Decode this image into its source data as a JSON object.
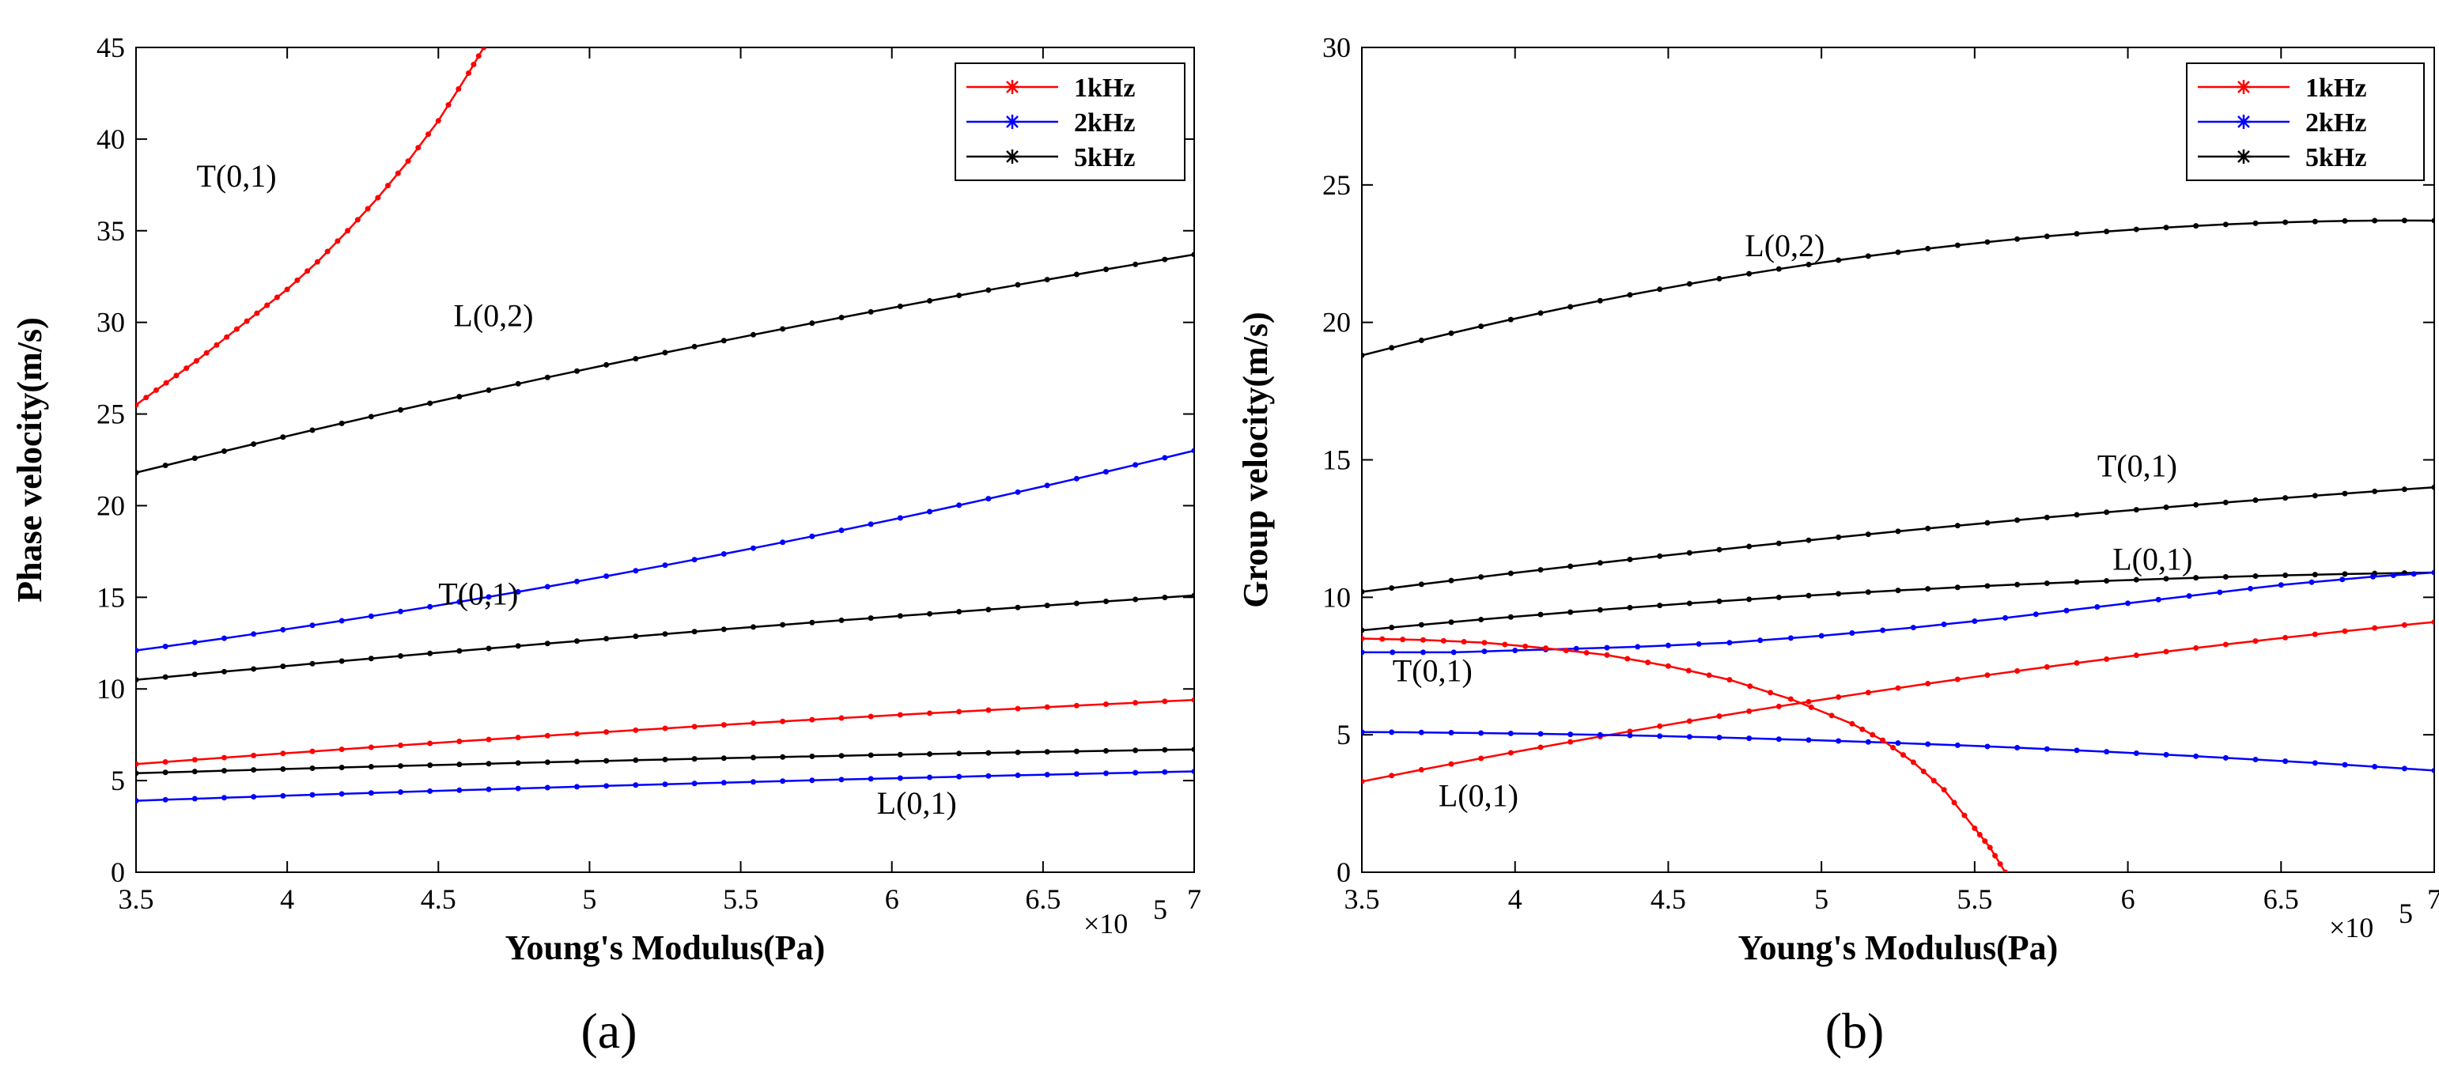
{
  "chart_data": [
    {
      "type": "line",
      "caption": "(a)",
      "xlabel": "Young's Modulus(Pa)",
      "ylabel": "Phase velocity(m/s)",
      "x_multiplier": "×10",
      "x_exponent": "5",
      "xlim": [
        3.5,
        7
      ],
      "ylim": [
        0,
        45
      ],
      "xticks": [
        "3.5",
        "4",
        "4.5",
        "5",
        "5.5",
        "6",
        "6.5",
        "7"
      ],
      "yticks": [
        "0",
        "5",
        "10",
        "15",
        "20",
        "25",
        "30",
        "35",
        "40",
        "45"
      ],
      "legend": [
        {
          "label": "1kHz",
          "color": "#ff0000"
        },
        {
          "label": "2kHz",
          "color": "#0000ff"
        },
        {
          "label": "5kHz",
          "color": "#000000"
        }
      ],
      "series": [
        {
          "name": "1kHz T(0,1)",
          "color": "#ff0000",
          "x": [
            3.5,
            3.6,
            3.7,
            3.8,
            3.9,
            4.0,
            4.1,
            4.2,
            4.3,
            4.4,
            4.5,
            4.6,
            4.65
          ],
          "y": [
            25.5,
            26.7,
            27.9,
            29.2,
            30.5,
            31.8,
            33.3,
            35.0,
            36.8,
            38.8,
            41.0,
            43.6,
            45.0
          ]
        },
        {
          "name": "5kHz L(0,2)",
          "color": "#000000",
          "x": [
            3.5,
            7
          ],
          "y": [
            21.8,
            33.7
          ],
          "curve": 0.6
        },
        {
          "name": "2kHz L(0,2)",
          "color": "#0000ff",
          "x": [
            3.5,
            7
          ],
          "y": [
            12.1,
            23.0
          ],
          "curve": -0.8
        },
        {
          "name": "5kHz T(0,1)",
          "color": "#000000",
          "x": [
            3.5,
            7
          ],
          "y": [
            10.5,
            15.1
          ],
          "curve": 0.2
        },
        {
          "name": "1kHz L(0,1)",
          "color": "#ff0000",
          "x": [
            3.5,
            7
          ],
          "y": [
            5.9,
            9.4
          ],
          "curve": 0.2
        },
        {
          "name": "5kHz L(0,1)",
          "color": "#000000",
          "x": [
            3.5,
            7
          ],
          "y": [
            5.4,
            6.7
          ],
          "curve": 0.1
        },
        {
          "name": "2kHz L(0,1)",
          "color": "#0000ff",
          "x": [
            3.5,
            7
          ],
          "y": [
            3.9,
            5.5
          ],
          "curve": 0.1
        }
      ],
      "annotations": [
        {
          "text": "T(0,1)",
          "x": 3.7,
          "y": 37.4
        },
        {
          "text": "L(0,2)",
          "x": 4.55,
          "y": 29.8
        },
        {
          "text": "T(0,1)",
          "x": 4.5,
          "y": 14.6
        },
        {
          "text": "L(0,1)",
          "x": 5.95,
          "y": 3.2
        }
      ]
    },
    {
      "type": "line",
      "caption": "(b)",
      "xlabel": "Young's Modulus(Pa)",
      "ylabel": "Group velocity(m/s)",
      "x_multiplier": "×10",
      "x_exponent": "5",
      "xlim": [
        3.5,
        7
      ],
      "ylim": [
        0,
        30
      ],
      "xticks": [
        "3.5",
        "4",
        "4.5",
        "5",
        "5.5",
        "6",
        "6.5",
        "7"
      ],
      "yticks": [
        "0",
        "5",
        "10",
        "15",
        "20",
        "25",
        "30"
      ],
      "legend": [
        {
          "label": "1kHz",
          "color": "#ff0000"
        },
        {
          "label": "2kHz",
          "color": "#0000ff"
        },
        {
          "label": "5kHz",
          "color": "#000000"
        }
      ],
      "series": [
        {
          "name": "5kHz L(0,2)",
          "color": "#000000",
          "x": [
            3.5,
            7
          ],
          "y": [
            18.8,
            23.7
          ],
          "curve": 1.3
        },
        {
          "name": "5kHz T(0,1)",
          "color": "#000000",
          "x": [
            3.5,
            7
          ],
          "y": [
            10.2,
            14.0
          ],
          "curve": 0.3
        },
        {
          "name": "5kHz L(0,1)",
          "color": "#000000",
          "x": [
            3.5,
            7
          ],
          "y": [
            8.8,
            10.9
          ],
          "curve": 0.4
        },
        {
          "name": "2kHz T(0,1)",
          "color": "#0000ff",
          "x": [
            3.5,
            3.8,
            4.1,
            4.4,
            4.7,
            5.0,
            5.3,
            5.6,
            5.9,
            6.2,
            6.5,
            6.8,
            7.0
          ],
          "y": [
            8.0,
            8.0,
            8.1,
            8.2,
            8.35,
            8.6,
            8.9,
            9.25,
            9.65,
            10.05,
            10.45,
            10.75,
            10.9
          ]
        },
        {
          "name": "1kHz L(0,1)",
          "color": "#ff0000",
          "x": [
            3.5,
            7
          ],
          "y": [
            3.3,
            9.1
          ],
          "curve": 0.5
        },
        {
          "name": "2kHz L(0,1)",
          "color": "#0000ff",
          "x": [
            3.5,
            7
          ],
          "y": [
            5.1,
            3.7
          ],
          "curve": 0.3
        },
        {
          "name": "1kHz T(0,1)",
          "color": "#ff0000",
          "x": [
            3.5,
            3.7,
            3.9,
            4.1,
            4.3,
            4.5,
            4.7,
            4.9,
            5.1,
            5.2,
            5.3,
            5.4,
            5.5,
            5.55,
            5.6
          ],
          "y": [
            8.5,
            8.45,
            8.35,
            8.15,
            7.9,
            7.5,
            7.0,
            6.3,
            5.4,
            4.8,
            4.0,
            3.0,
            1.6,
            0.9,
            0.0
          ]
        }
      ],
      "annotations": [
        {
          "text": "L(0,2)",
          "x": 4.75,
          "y": 22.4
        },
        {
          "text": "T(0,1)",
          "x": 5.9,
          "y": 14.4
        },
        {
          "text": "L(0,1)",
          "x": 5.95,
          "y": 11.0
        },
        {
          "text": "T(0,1)",
          "x": 3.6,
          "y": 6.95
        },
        {
          "text": "L(0,1)",
          "x": 3.75,
          "y": 2.4
        }
      ]
    }
  ]
}
